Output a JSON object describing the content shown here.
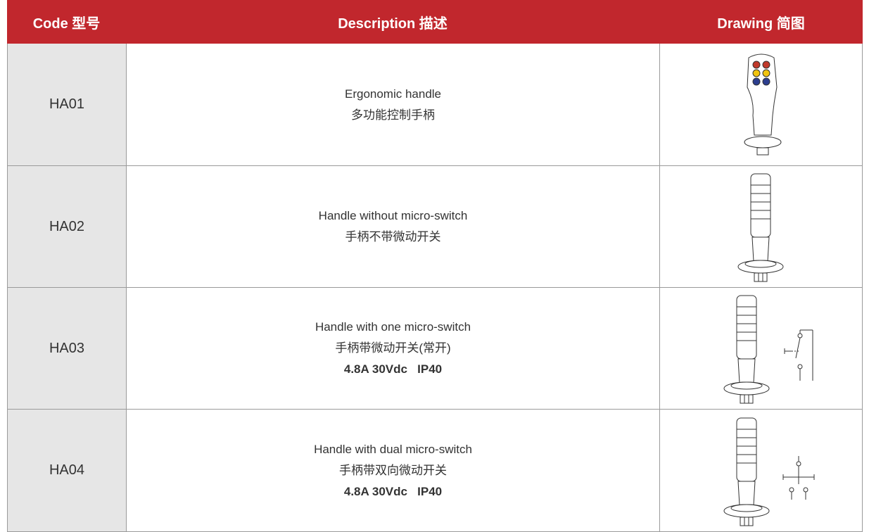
{
  "header": {
    "code": "Code 型号",
    "description": "Description 描述",
    "drawing": "Drawing 简图"
  },
  "rows": [
    {
      "code": "HA01",
      "description": [
        "Ergonomic handle",
        "多功能控制手柄"
      ]
    },
    {
      "code": "HA02",
      "description": [
        "Handle without micro-switch",
        "手柄不带微动开关"
      ]
    },
    {
      "code": "HA03",
      "description": [
        "Handle with one micro-switch",
        "手柄带微动开关(常开)"
      ],
      "spec": "4.8A 30Vdc   IP40"
    },
    {
      "code": "HA04",
      "description": [
        "Handle with dual micro-switch",
        "手柄带双向微动开关"
      ],
      "spec": "4.8A 30Vdc   IP40"
    }
  ]
}
